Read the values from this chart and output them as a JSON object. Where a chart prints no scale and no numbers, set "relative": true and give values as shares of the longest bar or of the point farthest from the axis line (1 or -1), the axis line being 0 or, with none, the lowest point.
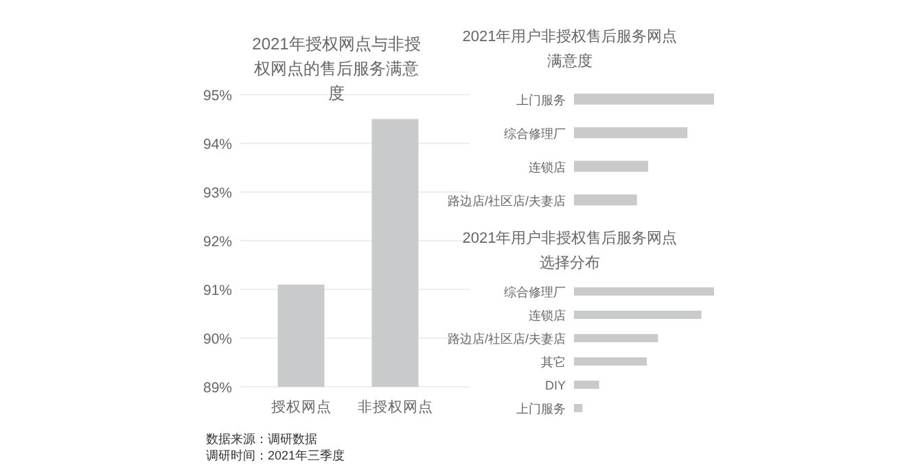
{
  "chart_data": [
    {
      "type": "bar",
      "title": "2021年授权网点与非授权网点的售后服务满意度",
      "categories": [
        "授权网点",
        "非授权网点"
      ],
      "values": [
        91.1,
        94.5
      ],
      "color": "#c9cacc",
      "ylim": [
        89,
        95
      ],
      "yticks": [
        {
          "value": 89,
          "label": "89%"
        },
        {
          "value": 90,
          "label": "90%"
        },
        {
          "value": 91,
          "label": "91%"
        },
        {
          "value": 92,
          "label": "92%"
        },
        {
          "value": 93,
          "label": "93%"
        },
        {
          "value": 94,
          "label": "94%"
        },
        {
          "value": 95,
          "label": "95%"
        }
      ],
      "grid": "y",
      "annotations": [
        "数据来源：调研数据",
        "调研时间：2021年三季度"
      ]
    },
    {
      "type": "bar",
      "orientation": "horizontal",
      "relative": true,
      "title": "2021年用户非授权售后服务网点满意度",
      "categories": [
        "上门服务",
        "综合修理厂",
        "连锁店",
        "路边店/社区店/夫妻店"
      ],
      "values": [
        1,
        0.81,
        0.53,
        0.45
      ],
      "color": "#c9cacc"
    },
    {
      "type": "bar",
      "orientation": "horizontal",
      "relative": true,
      "title": "2021年用户非授权售后服务网点选择分布",
      "categories": [
        "综合修理厂",
        "连锁店",
        "路边店/社区店/夫妻店",
        "其它",
        "DIY",
        "上门服务"
      ],
      "values": [
        1,
        0.91,
        0.6,
        0.52,
        0.18,
        0.06
      ],
      "color": "#c9cacc"
    }
  ]
}
